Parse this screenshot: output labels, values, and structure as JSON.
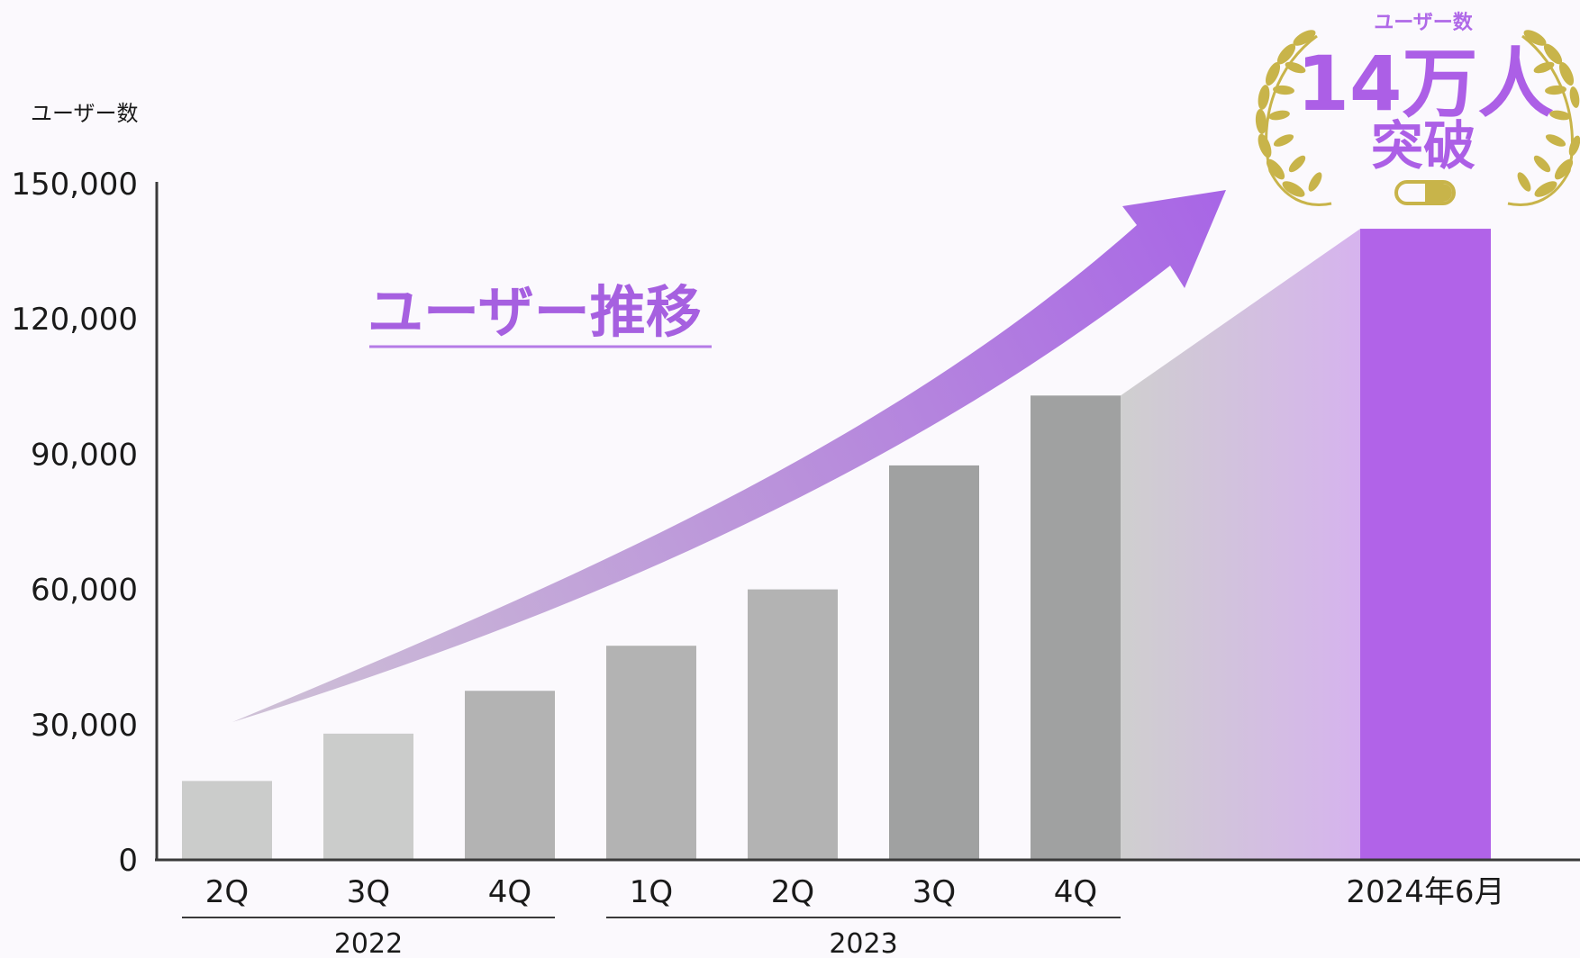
{
  "chart_data": {
    "type": "bar",
    "ylabel": "ユーザー数",
    "ylim": [
      0,
      150000
    ],
    "y_ticks": [
      "0",
      "30,000",
      "60,000",
      "90,000",
      "120,000",
      "150,000"
    ],
    "y_tick_values": [
      0,
      30000,
      60000,
      90000,
      120000,
      150000
    ],
    "categories": [
      "2Q",
      "3Q",
      "4Q",
      "1Q",
      "2Q",
      "3Q",
      "4Q",
      "2024年6月"
    ],
    "values": [
      17500,
      28000,
      37500,
      47500,
      60000,
      87500,
      103000,
      140000
    ],
    "bar_colors": [
      "#cbcccb",
      "#cbcccb",
      "#b3b3b3",
      "#b3b3b3",
      "#b3b3b3",
      "#a0a1a1",
      "#a0a1a1",
      "#b163e8"
    ],
    "groups": [
      {
        "label": "2022",
        "from": 0,
        "to": 2
      },
      {
        "label": "2023",
        "from": 3,
        "to": 6
      }
    ],
    "annotation": "ユーザー推移",
    "badge": {
      "top": "ユーザー数",
      "main": "14万人",
      "sub": "突破"
    },
    "colors": {
      "accent": "#b163e8",
      "axis": "#3a3a3a",
      "laurel": "#c8b44a"
    }
  }
}
